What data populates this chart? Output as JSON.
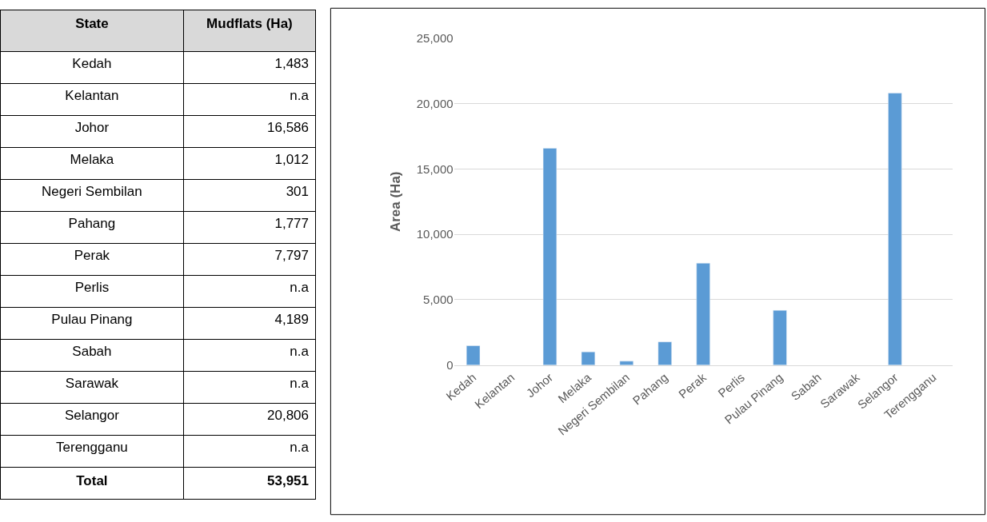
{
  "chart_data": {
    "type": "bar",
    "ylabel": "Area (Ha)",
    "categories": [
      "Kedah",
      "Kelantan",
      "Johor",
      "Melaka",
      "Negeri Sembilan",
      "Pahang",
      "Perak",
      "Perlis",
      "Pulau Pinang",
      "Sabah",
      "Sarawak",
      "Selangor",
      "Terengganu"
    ],
    "values": [
      1483,
      null,
      16586,
      1012,
      301,
      1777,
      7797,
      null,
      4189,
      null,
      null,
      20806,
      null
    ],
    "color": "#5b9bd5",
    "ylim": [
      0,
      25000
    ],
    "yticks": [
      0,
      {
        "value": 5000,
        "label": "5,000"
      },
      {
        "value": 10000,
        "label": "10,000"
      },
      {
        "value": 15000,
        "label": "15,000"
      },
      {
        "value": 20000,
        "label": "20,000"
      },
      {
        "value": 25000,
        "label": "25,000"
      }
    ],
    "grid": "y",
    "annotations": [
      "State",
      "Mudflats (Ha)",
      "1,483",
      "n.a",
      "16,586",
      "1,012",
      "301",
      "1,777",
      "7,797",
      "n.a",
      "4,189",
      "n.a",
      "n.a",
      "20,806",
      "n.a",
      "Total",
      "53,951"
    ]
  }
}
